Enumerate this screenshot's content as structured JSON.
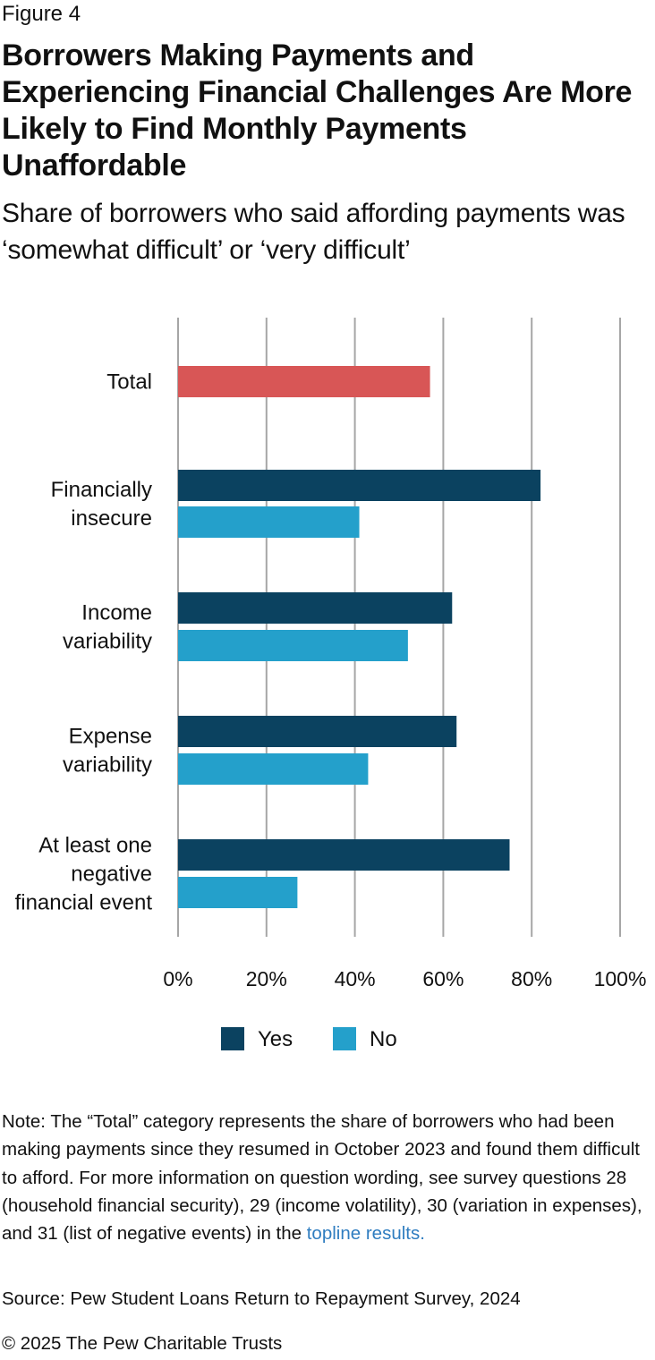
{
  "figure_label": "Figure 4",
  "note": {
    "text": "Note: The “Total” category represents the share of borrowers who had been making payments since they resumed in October 2023 and found them difficult to afford. For more information on question wording, see survey questions 28 (household financial security), 29 (income volatility), 30 (variation in expenses), and 31 (list of negative events) in the ",
    "link_text": "topline results."
  },
  "source": "Source: Pew Student Loans Return to Repayment Survey, 2024",
  "copyright": "© 2025 The Pew Charitable Trusts",
  "colors": {
    "total": "#d85656",
    "yes": "#0b4260",
    "no": "#24a0cb",
    "grid": "#a6a6a6",
    "link": "#2f7dc0"
  },
  "chart_data": {
    "type": "bar",
    "orientation": "horizontal",
    "title": "Borrowers Making Payments and Experiencing Financial Challenges Are More Likely to Find Monthly Payments Unaffordable",
    "subtitle": "Share of borrowers who said affording payments was ‘somewhat difficult’ or ‘very difficult’",
    "xlim": [
      0,
      100
    ],
    "x_ticks": [
      "0%",
      "20%",
      "40%",
      "60%",
      "80%",
      "100%"
    ],
    "grid": true,
    "legend_position": "bottom",
    "legend": [
      "Yes",
      "No"
    ],
    "categories": [
      {
        "label_lines": [
          "Total"
        ],
        "bars": [
          {
            "series": "Total",
            "value": 57
          }
        ]
      },
      {
        "label_lines": [
          "Financially",
          "insecure"
        ],
        "bars": [
          {
            "series": "Yes",
            "value": 82
          },
          {
            "series": "No",
            "value": 41
          }
        ]
      },
      {
        "label_lines": [
          "Income",
          "variability"
        ],
        "bars": [
          {
            "series": "Yes",
            "value": 62
          },
          {
            "series": "No",
            "value": 52
          }
        ]
      },
      {
        "label_lines": [
          "Expense",
          "variability"
        ],
        "bars": [
          {
            "series": "Yes",
            "value": 63
          },
          {
            "series": "No",
            "value": 43
          }
        ]
      },
      {
        "label_lines": [
          "At least one",
          "negative",
          "financial event"
        ],
        "bars": [
          {
            "series": "Yes",
            "value": 75
          },
          {
            "series": "No",
            "value": 27
          }
        ]
      }
    ]
  }
}
